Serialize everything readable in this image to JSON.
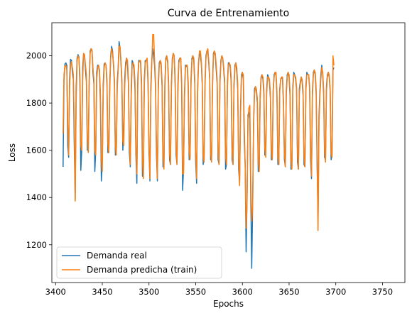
{
  "chart_data": {
    "type": "line",
    "title": "Curva de Entrenamiento",
    "xlabel": "Epochs",
    "ylabel": "Loss",
    "xlim": [
      3396,
      3774
    ],
    "ylim": [
      1040,
      2140
    ],
    "xticks": [
      3400,
      3450,
      3500,
      3550,
      3600,
      3650,
      3700,
      3750
    ],
    "yticks": [
      1200,
      1400,
      1600,
      1800,
      2000
    ],
    "grid": false,
    "legend": "lower-left",
    "series": [
      {
        "name": "Demanda real",
        "color": "#1f77b4",
        "x0": 3408,
        "values": [
          1530,
          1900,
          1965,
          1970,
          1960,
          1620,
          1570,
          1900,
          1985,
          1980,
          1930,
          1900,
          1620,
          1390,
          1860,
          1990,
          2005,
          1995,
          1890,
          1515,
          1600,
          1950,
          2010,
          2000,
          1940,
          1890,
          1600,
          1600,
          1900,
          2020,
          2030,
          2020,
          1930,
          1880,
          1510,
          1600,
          1930,
          1960,
          1960,
          1930,
          1800,
          1470,
          1550,
          1880,
          1965,
          1970,
          1960,
          1880,
          1590,
          1590,
          1880,
          2000,
          2040,
          2020,
          1960,
          1880,
          1580,
          1590,
          1890,
          1950,
          2060,
          2030,
          1970,
          1880,
          1600,
          1690,
          1900,
          1970,
          1990,
          1960,
          1880,
          1590,
          1530,
          1870,
          1980,
          1970,
          1940,
          1860,
          1580,
          1460,
          1900,
          1980,
          1980,
          1970,
          1870,
          1490,
          1500,
          1900,
          1980,
          1980,
          1980,
          1880,
          1590,
          1470,
          1870,
          1980,
          2030,
          2000,
          1960,
          1870,
          1580,
          1470,
          1890,
          1970,
          1980,
          1960,
          1870,
          1530,
          1530,
          1880,
          1990,
          2000,
          1970,
          1870,
          1560,
          1540,
          1880,
          1990,
          2010,
          2000,
          1880,
          1580,
          1540,
          1880,
          1980,
          1990,
          1990,
          1870,
          1430,
          1520,
          1840,
          1960,
          1960,
          1950,
          1870,
          1560,
          1570,
          1900,
          1990,
          2000,
          1980,
          1880,
          1550,
          1460,
          1850,
          1970,
          2010,
          2000,
          1970,
          1880,
          1540,
          1560,
          1890,
          2000,
          2020,
          2020,
          1970,
          1900,
          1560,
          1560,
          1880,
          2010,
          2020,
          2000,
          1940,
          1880,
          1560,
          1540,
          1900,
          1980,
          2000,
          1990,
          1940,
          1880,
          1520,
          1540,
          1890,
          1970,
          1970,
          1950,
          1890,
          1560,
          1540,
          1880,
          1960,
          1970,
          1930,
          1860,
          1520,
          1460,
          1780,
          1920,
          1930,
          1900,
          1640,
          1540,
          1170,
          1400,
          1750,
          1760,
          1730,
          1400,
          1100,
          1380,
          1720,
          1860,
          1870,
          1850,
          1800,
          1510,
          1520,
          1830,
          1910,
          1920,
          1900,
          1840,
          1580,
          1580,
          1860,
          1920,
          1910,
          1890,
          1820,
          1560,
          1560,
          1860,
          1920,
          1930,
          1920,
          1830,
          1540,
          1540,
          1860,
          1900,
          1910,
          1900,
          1790,
          1560,
          1530,
          1850,
          1920,
          1930,
          1910,
          1830,
          1520,
          1530,
          1870,
          1930,
          1920,
          1900,
          1860,
          1550,
          1520,
          1860,
          1890,
          1910,
          1890,
          1830,
          1540,
          1530,
          1870,
          1930,
          1920,
          1920,
          1860,
          1560,
          1480,
          1850,
          1930,
          1940,
          1920,
          1840,
          1540,
          1310,
          1740,
          1850,
          1920,
          1960,
          1920,
          1840,
          1570,
          1560,
          1870,
          1920,
          1930,
          1910,
          1850,
          1560,
          1580,
          1940,
          1950
        ]
      },
      {
        "name": "Demanda predicha (train)",
        "color": "#ff7f0e",
        "x0": 3408,
        "values": [
          1670,
          1920,
          1955,
          1960,
          1940,
          1720,
          1580,
          1870,
          1960,
          1975,
          1950,
          1920,
          1700,
          1385,
          1800,
          1980,
          2000,
          1990,
          1920,
          1620,
          1600,
          1900,
          2010,
          2005,
          1960,
          1920,
          1650,
          1590,
          1880,
          2010,
          2030,
          2025,
          1950,
          1900,
          1600,
          1580,
          1900,
          1950,
          1960,
          1940,
          1840,
          1560,
          1510,
          1850,
          1950,
          1970,
          1960,
          1900,
          1630,
          1590,
          1850,
          1990,
          2030,
          2010,
          1970,
          1900,
          1620,
          1580,
          1860,
          1940,
          2040,
          2040,
          1980,
          1900,
          1640,
          1620,
          1870,
          1950,
          1990,
          1980,
          1900,
          1640,
          1540,
          1830,
          1960,
          1970,
          1960,
          1890,
          1620,
          1500,
          1870,
          1970,
          1980,
          1980,
          1900,
          1560,
          1480,
          1870,
          1970,
          1980,
          1990,
          1900,
          1620,
          1480,
          1840,
          1970,
          2090,
          2090,
          1980,
          1890,
          1620,
          1480,
          1860,
          1960,
          1980,
          1970,
          1890,
          1580,
          1520,
          1860,
          1980,
          2000,
          1980,
          1890,
          1590,
          1540,
          1860,
          1980,
          2010,
          2000,
          1900,
          1610,
          1540,
          1850,
          1970,
          1990,
          1990,
          1890,
          1500,
          1500,
          1820,
          1950,
          1960,
          1960,
          1890,
          1600,
          1560,
          1880,
          1980,
          2000,
          1990,
          1900,
          1590,
          1480,
          1830,
          1960,
          2020,
          2020,
          1980,
          1900,
          1580,
          1550,
          1870,
          1990,
          2020,
          2030,
          1980,
          1910,
          1590,
          1550,
          1860,
          2000,
          2020,
          2010,
          1960,
          1900,
          1600,
          1540,
          1880,
          1970,
          2000,
          1990,
          1950,
          1900,
          1570,
          1540,
          1870,
          1960,
          1970,
          1960,
          1910,
          1600,
          1540,
          1860,
          1950,
          1970,
          1950,
          1880,
          1570,
          1450,
          1740,
          1910,
          1930,
          1920,
          1700,
          1530,
          1270,
          1380,
          1730,
          1780,
          1790,
          1460,
          1300,
          1360,
          1700,
          1840,
          1870,
          1860,
          1820,
          1560,
          1510,
          1810,
          1900,
          1920,
          1910,
          1860,
          1610,
          1570,
          1840,
          1910,
          1910,
          1900,
          1840,
          1600,
          1560,
          1850,
          1910,
          1930,
          1930,
          1850,
          1580,
          1540,
          1850,
          1900,
          1910,
          1910,
          1810,
          1590,
          1530,
          1830,
          1910,
          1930,
          1920,
          1850,
          1560,
          1520,
          1850,
          1920,
          1920,
          1910,
          1870,
          1590,
          1520,
          1840,
          1880,
          1910,
          1900,
          1850,
          1580,
          1530,
          1850,
          1920,
          1920,
          1920,
          1870,
          1600,
          1490,
          1830,
          1920,
          1940,
          1930,
          1860,
          1580,
          1260,
          1700,
          1830,
          1900,
          1950,
          1930,
          1860,
          1600,
          1550,
          1850,
          1910,
          1930,
          1920,
          1860,
          1590,
          1570,
          2000,
          1960
        ]
      }
    ]
  }
}
